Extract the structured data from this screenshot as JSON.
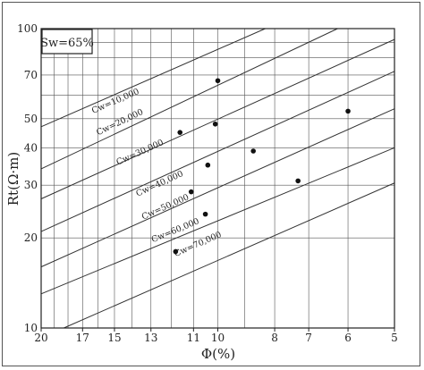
{
  "chart_data": {
    "type": "scatter",
    "title": "",
    "xlabel": "Φ(%)",
    "ylabel": "Rt(Ω·m)",
    "x_scale": "reciprocal-log",
    "y_scale": "log",
    "xlim": [
      20,
      5
    ],
    "ylim": [
      10,
      100
    ],
    "x_ticks": [
      20,
      17,
      15,
      13,
      11,
      10,
      8,
      7,
      6,
      5
    ],
    "y_ticks": [
      10,
      20,
      30,
      40,
      50,
      70,
      100
    ],
    "box_label": "Sw=65%",
    "points": [
      {
        "x": 10.0,
        "y": 67
      },
      {
        "x": 11.6,
        "y": 45
      },
      {
        "x": 10.1,
        "y": 48
      },
      {
        "x": 8.7,
        "y": 39
      },
      {
        "x": 6.0,
        "y": 53
      },
      {
        "x": 10.4,
        "y": 35
      },
      {
        "x": 7.3,
        "y": 31
      },
      {
        "x": 11.1,
        "y": 28.5
      },
      {
        "x": 10.5,
        "y": 24
      },
      {
        "x": 11.8,
        "y": 18
      }
    ],
    "cw_lines": [
      {
        "label": "Cw=10,000",
        "start": [
          20,
          47
        ],
        "end": [
          8.3,
          100
        ],
        "label_pos": [
          16.3,
          52
        ]
      },
      {
        "label": "Cw=20,000",
        "start": [
          20,
          34
        ],
        "end": [
          6.25,
          100
        ],
        "label_pos": [
          16.0,
          44
        ]
      },
      {
        "label": "Cw=30,000",
        "start": [
          20,
          27
        ],
        "end": [
          5,
          92
        ],
        "label_pos": [
          14.8,
          35
        ]
      },
      {
        "label": "Cw=40,000",
        "start": [
          20,
          21
        ],
        "end": [
          5,
          72
        ],
        "label_pos": [
          13.7,
          27.5
        ]
      },
      {
        "label": "Cw=50,000",
        "start": [
          20,
          16
        ],
        "end": [
          5,
          54
        ],
        "label_pos": [
          13.4,
          23
        ]
      },
      {
        "label": "Cw=60,000",
        "start": [
          20,
          13
        ],
        "end": [
          5,
          40
        ],
        "label_pos": [
          12.9,
          19.3
        ]
      },
      {
        "label": "Cw=70,000",
        "start": [
          18.3,
          10
        ],
        "end": [
          5,
          30.5
        ],
        "label_pos": [
          11.8,
          17.3
        ]
      }
    ],
    "grid": true,
    "legend": "none"
  }
}
